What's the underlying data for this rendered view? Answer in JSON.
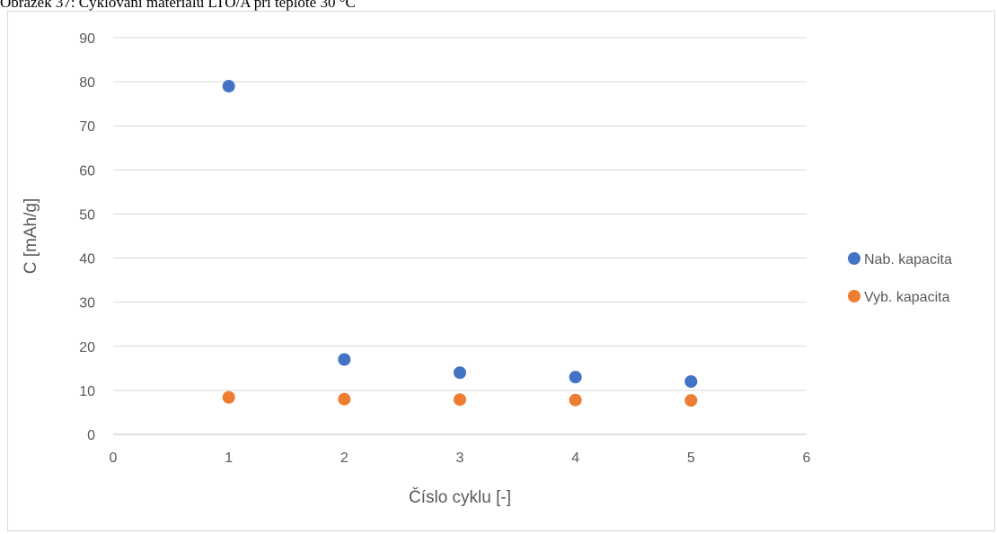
{
  "caption": "Obrázek 37: Cyklování materiálu LTO/A při teplotě 30 °C",
  "chart_data": {
    "type": "scatter",
    "xlabel": "Číslo cyklu [-]",
    "ylabel": "C [mAh/g]",
    "xlim": [
      0,
      6
    ],
    "ylim": [
      0,
      90
    ],
    "xticks": [
      0,
      1,
      2,
      3,
      4,
      5,
      6
    ],
    "yticks": [
      0,
      10,
      20,
      30,
      40,
      50,
      60,
      70,
      80,
      90
    ],
    "grid": "horizontal",
    "legend_position": "right",
    "series": [
      {
        "name": "Nab. kapacita",
        "color": "#4472c4",
        "x": [
          1,
          2,
          3,
          4,
          5
        ],
        "y": [
          79,
          17,
          14,
          13,
          12
        ]
      },
      {
        "name": "Vyb. kapacita",
        "color": "#ed7d31",
        "x": [
          1,
          2,
          3,
          4,
          5
        ],
        "y": [
          8.4,
          8,
          7.9,
          7.8,
          7.7
        ]
      }
    ]
  }
}
